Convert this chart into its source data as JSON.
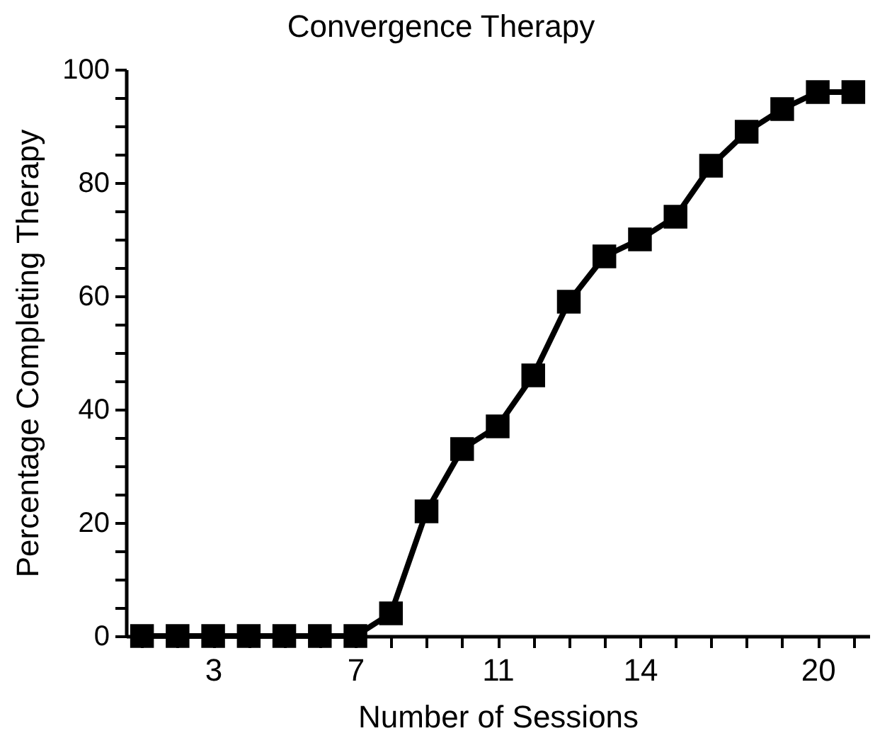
{
  "chart_data": {
    "type": "line",
    "title": "Convergence Therapy",
    "xlabel": "Number of Sessions",
    "ylabel": "Percentage Completing Therapy",
    "categories": [
      null,
      null,
      "3",
      null,
      null,
      null,
      "7",
      null,
      null,
      null,
      "11",
      null,
      null,
      null,
      "14",
      null,
      null,
      null,
      null,
      "20",
      null
    ],
    "series": [
      {
        "color": "#000000",
        "values": [
          0,
          0,
          0,
          0,
          0,
          0,
          0,
          4,
          22,
          33,
          37,
          46,
          59,
          67,
          70,
          74,
          83,
          89,
          93,
          96,
          96
        ]
      }
    ],
    "ylim": [
      0,
      100
    ],
    "yticks": [
      0,
      {
        "value": 5,
        "label": null
      },
      {
        "value": 10,
        "label": null
      },
      {
        "value": 15,
        "label": null
      },
      20,
      {
        "value": 25,
        "label": null
      },
      {
        "value": 30,
        "label": null
      },
      {
        "value": 35,
        "label": null
      },
      40,
      {
        "value": 45,
        "label": null
      },
      {
        "value": 50,
        "label": null
      },
      {
        "value": 55,
        "label": null
      },
      60,
      {
        "value": 65,
        "label": null
      },
      {
        "value": 70,
        "label": null
      },
      {
        "value": 75,
        "label": null
      },
      80,
      {
        "value": 85,
        "label": null
      },
      {
        "value": 90,
        "label": null
      },
      {
        "value": 95,
        "label": null
      },
      100
    ],
    "grid": false,
    "legend": false,
    "marker": "square",
    "line_style": "solid"
  }
}
